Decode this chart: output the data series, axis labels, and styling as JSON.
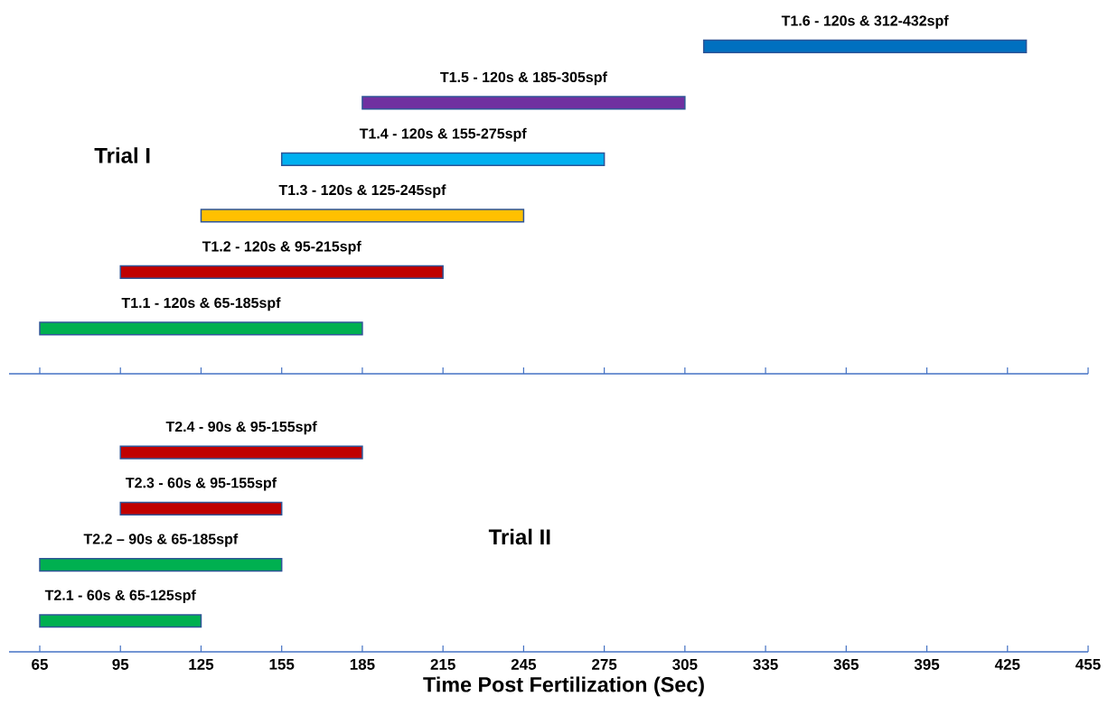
{
  "chart_data": [
    {
      "type": "bar",
      "orientation": "horizontal",
      "categories": [
        "T1.6 - 120s & 312-432spf",
        "T1.5 - 120s & 185-305spf",
        "T1.4 - 120s & 155-275spf",
        "T1.3 - 120s & 125-245spf",
        "T1.2 - 120s & 95-215spf",
        "T1.1 - 120s & 65-185spf"
      ],
      "base": [
        312,
        185,
        155,
        125,
        95,
        65
      ],
      "values": [
        120,
        120,
        120,
        120,
        120,
        120
      ],
      "colors": [
        "#0070c0",
        "#7030a0",
        "#00b0f0",
        "#ffc000",
        "#c00000",
        "#00b050"
      ],
      "xlim": [
        65,
        455
      ],
      "xticks": [
        65,
        95,
        125,
        155,
        185,
        215,
        245,
        275,
        305,
        335,
        365,
        395,
        425,
        455
      ],
      "tick_labels": false,
      "annotations": [
        "Trial I"
      ]
    },
    {
      "type": "bar",
      "orientation": "horizontal",
      "categories": [
        "T2.4 - 90s & 95-155spf",
        "T2.3 - 60s & 95-155spf",
        "T2.2 – 90s & 65-185spf",
        "T2.1 - 60s & 65-125spf"
      ],
      "base": [
        95,
        95,
        65,
        65
      ],
      "values": [
        90,
        60,
        90,
        60
      ],
      "colors": [
        "#c00000",
        "#c00000",
        "#00b050",
        "#00b050"
      ],
      "xlim": [
        65,
        455
      ],
      "xticks": [
        65,
        95,
        125,
        155,
        185,
        215,
        245,
        275,
        305,
        335,
        365,
        395,
        425,
        455
      ],
      "xlabel": "Time Post Fertilization (Sec)",
      "tick_labels": "x",
      "annotations": [
        "Trial II"
      ]
    }
  ]
}
